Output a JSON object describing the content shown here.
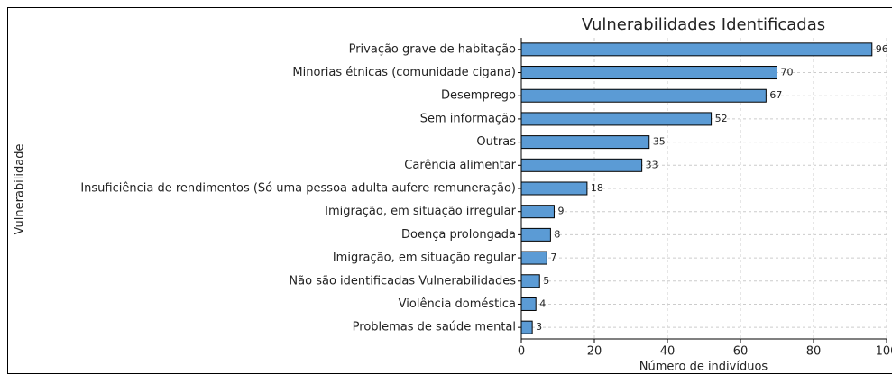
{
  "chart_data": {
    "type": "barh",
    "title": "Vulnerabilidades Identificadas",
    "xlabel": "Número de indivíduos",
    "ylabel": "Vulnerabilidade",
    "categories": [
      "Privação grave de habitação",
      "Minorias étnicas (comunidade cigana)",
      "Desemprego",
      "Sem informação",
      "Outras",
      "Carência alimentar",
      "Insuficiência de rendimentos (Só uma pessoa adulta aufere remuneração)",
      "Imigração, em situação irregular",
      "Doença prolongada",
      "Imigração, em situação regular",
      "Não são identificadas Vulnerabilidades",
      "Violência doméstica",
      "Problemas de saúde mental"
    ],
    "values": [
      96,
      70,
      67,
      52,
      35,
      33,
      18,
      9,
      8,
      7,
      5,
      4,
      3
    ],
    "color": "#5b9bd5",
    "xlim": [
      0,
      100
    ],
    "xticks": [
      0,
      20,
      40,
      60,
      80,
      100
    ],
    "grid": true
  }
}
